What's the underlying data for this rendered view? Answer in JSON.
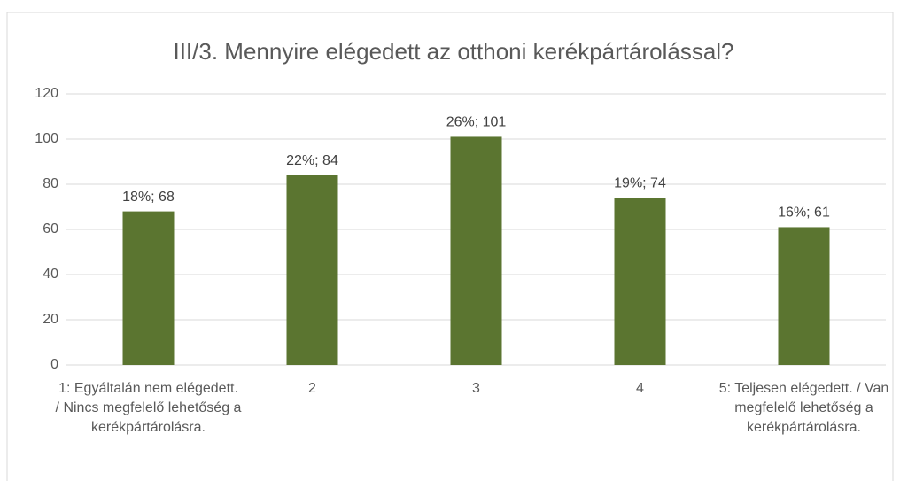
{
  "chart_data": {
    "type": "bar",
    "title": "III/3. Mennyire elégedett az otthoni kerékpártárolással?",
    "categories": [
      "1: Egyáltalán nem elégedett. / Nincs megfelelő lehetőség a kerékpártárolásra.",
      "2",
      "3",
      "4",
      "5: Teljesen elégedett. / Van megfelelő lehetőség a kerékpártárolásra."
    ],
    "values": [
      68,
      84,
      101,
      74,
      61
    ],
    "value_labels": [
      "18%; 68",
      "22%; 84",
      "26%; 101",
      "19%; 74",
      "16%; 61"
    ],
    "color": "#5b7530",
    "ylim": [
      0,
      120
    ],
    "yticks": [
      0,
      20,
      40,
      60,
      80,
      100,
      120
    ],
    "grid": true
  }
}
